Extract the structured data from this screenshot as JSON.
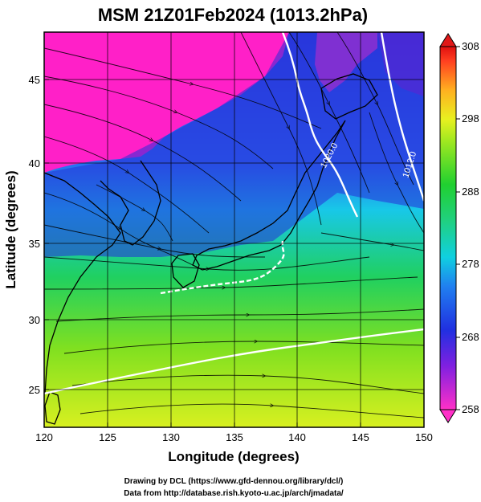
{
  "title": "MSM 21Z01Feb2024 (1013.2hPa)",
  "x_axis": {
    "label": "Longitude (degrees)",
    "ticks": [
      "120",
      "125",
      "130",
      "135",
      "140",
      "145",
      "150"
    ],
    "range": [
      120,
      150
    ]
  },
  "y_axis": {
    "label": "Latitude (degrees)",
    "ticks": [
      "25",
      "30",
      "35",
      "40",
      "45"
    ],
    "range": [
      22.4,
      47.6
    ]
  },
  "colorbar": {
    "ticks": [
      "258",
      "268",
      "278",
      "288",
      "298",
      "308"
    ],
    "range": [
      258,
      308
    ]
  },
  "contour_labels": [
    "1020.0",
    "1012.0"
  ],
  "credits": [
    "Drawing by DCL (https://www.gfd-dennou.org/library/dcl/)",
    "Data from http://database.rish.kyoto-u.ac.jp/arch/jmadata/"
  ],
  "colors": {
    "cold": "#ff20c8",
    "cool": "#2030e0",
    "mid": "#10d0e0",
    "warm": "#20d040",
    "hot": "#e0ff10",
    "land_outline": "#000000",
    "isobar": "#ffffff"
  }
}
